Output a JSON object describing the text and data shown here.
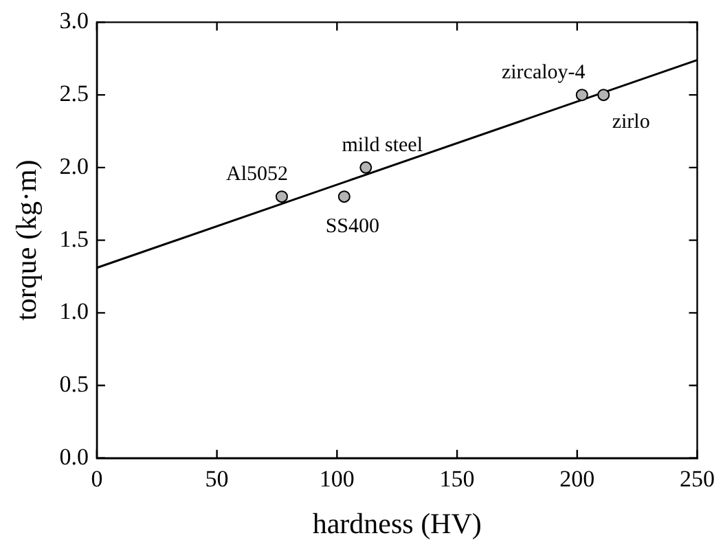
{
  "chart_data": {
    "type": "scatter",
    "xlabel": "hardness (HV)",
    "ylabel": "torque (kg·m)",
    "xlim": [
      0,
      250
    ],
    "xticks": [
      0,
      50,
      100,
      150,
      200,
      250
    ],
    "ylim": [
      0,
      3
    ],
    "yticks": [
      {
        "value": 0,
        "label": "0.0"
      },
      {
        "value": 0.5,
        "label": "0.5"
      },
      {
        "value": 1,
        "label": "1.0"
      },
      {
        "value": 1.5,
        "label": "1.5"
      },
      {
        "value": 2,
        "label": "2.0"
      },
      {
        "value": 2.5,
        "label": "2.5"
      },
      {
        "value": 3,
        "label": "3.0"
      }
    ],
    "grid": false,
    "legend": false,
    "marker": "circle",
    "series": [
      {
        "type": "scatter",
        "color": "#b4b4b4",
        "x": [
          77,
          103,
          112,
          202,
          211
        ],
        "values": [
          1.8,
          1.8,
          2.0,
          2.5,
          2.5
        ]
      },
      {
        "type": "line",
        "color": "#000000",
        "marker": "none",
        "line_style": "solid",
        "x": [
          0,
          250
        ],
        "values": [
          1.31,
          2.74
        ]
      }
    ],
    "annotations": [
      {
        "text": "Al5052",
        "x": 77,
        "y": 1.8
      },
      {
        "text": "SS400",
        "x": 103,
        "y": 1.8
      },
      {
        "text": "mild steel",
        "x": 112,
        "y": 2.0
      },
      {
        "text": "zircaloy-4",
        "x": 202,
        "y": 2.5
      },
      {
        "text": "zirlo",
        "x": 211,
        "y": 2.5
      }
    ]
  }
}
